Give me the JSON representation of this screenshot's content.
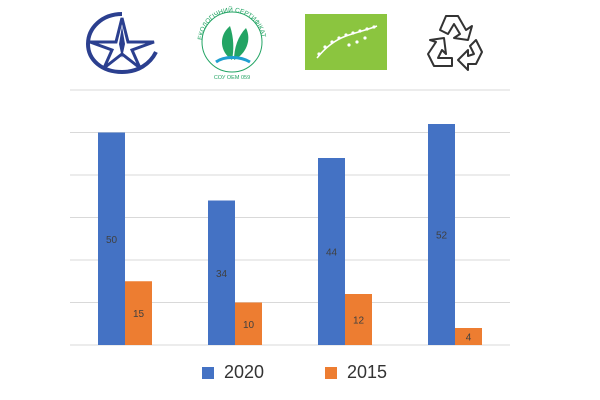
{
  "logos": [
    {
      "icon": "quality-mark-icon",
      "color": "#2b3f8f"
    },
    {
      "icon": "eco-certificate-icon",
      "text": "ЕКОЛОГІЧНИЙ СЕРТИФІКАТ",
      "subtext": "СОУ OEM 059",
      "color": "#23a464"
    },
    {
      "icon": "eu-organic-leaf-icon",
      "color": "#8bc53f"
    },
    {
      "icon": "recycle-icon",
      "color": "#333333"
    }
  ],
  "colors": {
    "series_2020": "#4472c4",
    "series_2015": "#ed7d31",
    "grid": "#d9d9d9",
    "label": "#404040"
  },
  "chart_data": {
    "type": "bar",
    "categories": [
      "",
      "",
      "",
      ""
    ],
    "series": [
      {
        "name": "2020",
        "values": [
          50,
          34,
          44,
          52
        ]
      },
      {
        "name": "2015",
        "values": [
          15,
          10,
          12,
          4
        ]
      }
    ],
    "title": "",
    "xlabel": "",
    "ylabel": "",
    "ylim": [
      0,
      60
    ],
    "grid": true,
    "legend": "bottom"
  }
}
